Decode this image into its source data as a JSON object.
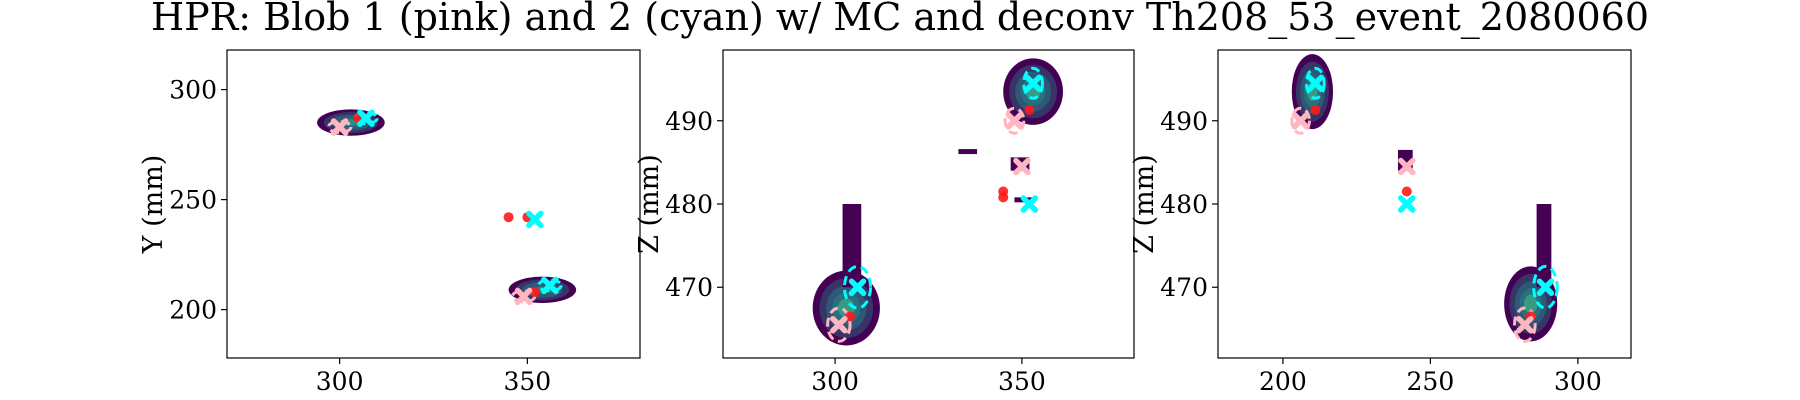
{
  "title": "HPR: Blob 1 (pink) and 2 (cyan) w/ MC and deconv Th208_53_event_2080060",
  "colors": {
    "blob1": "#ffb6c1",
    "blob2": "#00ffff",
    "mc": "#ff1a1a",
    "cmap_low": "#440154",
    "cmap_mid": "#21918c",
    "cmap_high": "#fde725"
  },
  "chart_data": [
    {
      "type": "heatmap",
      "title": "",
      "xlabel": "",
      "ylabel": "Y (mm)",
      "xlim": [
        270,
        380
      ],
      "ylim": [
        178,
        318
      ],
      "xticks": [
        300,
        350
      ],
      "yticks": [
        200,
        250,
        300
      ],
      "grid": false,
      "clusters": [
        {
          "cx": 303,
          "cy": 285,
          "rx": 9,
          "ry": 6,
          "intensity": 0.5
        },
        {
          "cx": 354,
          "cy": 209,
          "rx": 9,
          "ry": 6,
          "intensity": 0.45
        }
      ],
      "mc_points": [
        {
          "x": 345,
          "y": 242
        },
        {
          "x": 350,
          "y": 242
        },
        {
          "x": 305,
          "y": 287
        },
        {
          "x": 352,
          "y": 208
        }
      ],
      "blob1_markers": [
        {
          "x": 300,
          "y": 283
        },
        {
          "x": 349,
          "y": 206
        }
      ],
      "blob2_markers": [
        {
          "x": 307,
          "y": 287
        },
        {
          "x": 352,
          "y": 241
        },
        {
          "x": 356,
          "y": 211
        }
      ],
      "blob1_rings": [
        {
          "cx": 300,
          "cy": 283,
          "rx": 3,
          "ry": 2.5
        },
        {
          "cx": 349,
          "cy": 206,
          "rx": 3,
          "ry": 2.5
        }
      ],
      "blob2_rings": [
        {
          "cx": 307,
          "cy": 287,
          "rx": 3,
          "ry": 2.5
        },
        {
          "cx": 356,
          "cy": 211,
          "rx": 3,
          "ry": 2.5
        }
      ]
    },
    {
      "type": "heatmap",
      "title": "",
      "xlabel": "",
      "ylabel": "Z (mm)",
      "xlim": [
        270,
        380
      ],
      "ylim": [
        461.5,
        498.5
      ],
      "xticks": [
        300,
        350
      ],
      "yticks": [
        470,
        480,
        490
      ],
      "grid": false,
      "clusters": [
        {
          "cx": 353,
          "cy": 493.5,
          "rx": 8,
          "ry": 4,
          "intensity": 0.55
        },
        {
          "cx": 303,
          "cy": 467.5,
          "rx": 9,
          "ry": 4.5,
          "intensity": 0.55
        }
      ],
      "streaks": [
        {
          "x0": 302,
          "x1": 307,
          "y0": 470,
          "y1": 480
        },
        {
          "x0": 333,
          "x1": 338,
          "y0": 486,
          "y1": 486.6
        },
        {
          "x0": 347,
          "x1": 352,
          "y0": 484,
          "y1": 485.6
        },
        {
          "x0": 348,
          "x1": 353,
          "y0": 480.2,
          "y1": 480.8
        }
      ],
      "mc_points": [
        {
          "x": 345,
          "y": 481.5
        },
        {
          "x": 345,
          "y": 480.8
        },
        {
          "x": 352,
          "y": 491.3
        },
        {
          "x": 304,
          "y": 466.5
        }
      ],
      "blob1_markers": [
        {
          "x": 348,
          "y": 490
        },
        {
          "x": 350,
          "y": 484.5
        },
        {
          "x": 301,
          "y": 465.5
        }
      ],
      "blob2_markers": [
        {
          "x": 353,
          "y": 494.5
        },
        {
          "x": 352,
          "y": 480
        },
        {
          "x": 306,
          "y": 470
        }
      ],
      "blob1_rings": [
        {
          "cx": 348,
          "cy": 490,
          "rx": 2.5,
          "ry": 1.5
        },
        {
          "cx": 301,
          "cy": 465.5,
          "rx": 3,
          "ry": 2
        }
      ],
      "blob2_rings": [
        {
          "cx": 353,
          "cy": 494.5,
          "rx": 2.5,
          "ry": 1.8
        },
        {
          "cx": 306,
          "cy": 470,
          "rx": 3.5,
          "ry": 2.5
        }
      ]
    },
    {
      "type": "heatmap",
      "title": "",
      "xlabel": "",
      "ylabel": "Z (mm)",
      "xlim": [
        178,
        318
      ],
      "ylim": [
        461.5,
        498.5
      ],
      "xticks": [
        200,
        250,
        300
      ],
      "yticks": [
        470,
        480,
        490
      ],
      "grid": false,
      "clusters": [
        {
          "cx": 210,
          "cy": 493.5,
          "rx": 7,
          "ry": 4.5,
          "intensity": 0.55
        },
        {
          "cx": 284,
          "cy": 468,
          "rx": 9,
          "ry": 4.5,
          "intensity": 0.55
        }
      ],
      "streaks": [
        {
          "x0": 239,
          "x1": 244,
          "y0": 484,
          "y1": 486.5
        },
        {
          "x0": 286,
          "x1": 291,
          "y0": 470,
          "y1": 480
        }
      ],
      "mc_points": [
        {
          "x": 242,
          "y": 481.5
        },
        {
          "x": 211,
          "y": 491.3
        },
        {
          "x": 284,
          "y": 466.5
        }
      ],
      "blob1_markers": [
        {
          "x": 206,
          "y": 490
        },
        {
          "x": 242,
          "y": 484.5
        },
        {
          "x": 282,
          "y": 465.5
        }
      ],
      "blob2_markers": [
        {
          "x": 211,
          "y": 494.5
        },
        {
          "x": 242,
          "y": 480
        },
        {
          "x": 289,
          "y": 470
        }
      ],
      "blob1_rings": [
        {
          "cx": 206,
          "cy": 490,
          "rx": 3,
          "ry": 1.5
        },
        {
          "cx": 282,
          "cy": 465.5,
          "rx": 3.5,
          "ry": 2
        }
      ],
      "blob2_rings": [
        {
          "cx": 211,
          "cy": 494.5,
          "rx": 3,
          "ry": 1.8
        },
        {
          "cx": 289,
          "cy": 470,
          "rx": 4,
          "ry": 2.5
        }
      ]
    }
  ]
}
